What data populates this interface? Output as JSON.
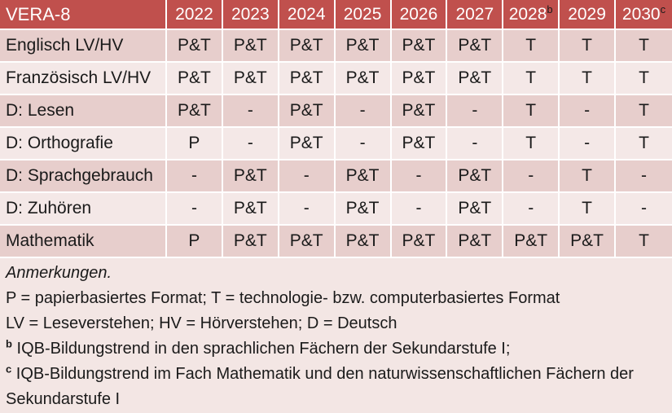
{
  "table": {
    "title": "VERA-8",
    "columns": [
      {
        "label": "2022"
      },
      {
        "label": "2023"
      },
      {
        "label": "2024"
      },
      {
        "label": "2025"
      },
      {
        "label": "2026"
      },
      {
        "label": "2027"
      },
      {
        "label": "2028",
        "sup": "b"
      },
      {
        "label": "2029"
      },
      {
        "label": "2030",
        "sup": "c"
      }
    ],
    "red_from_column_index": 6,
    "rows": [
      {
        "label": "Englisch LV/HV",
        "cells": [
          "P&T",
          "P&T",
          "P&T",
          "P&T",
          "P&T",
          "P&T",
          "T",
          "T",
          "T"
        ]
      },
      {
        "label": "Französisch LV/HV",
        "cells": [
          "P&T",
          "P&T",
          "P&T",
          "P&T",
          "P&T",
          "P&T",
          "T",
          "T",
          "T"
        ]
      },
      {
        "label": "D: Lesen",
        "cells": [
          "P&T",
          "-",
          "P&T",
          "-",
          "P&T",
          "-",
          "T",
          "-",
          "T"
        ]
      },
      {
        "label": "D: Orthografie",
        "cells": [
          "P",
          "-",
          "P&T",
          "-",
          "P&T",
          "-",
          "T",
          "-",
          "T"
        ]
      },
      {
        "label": "D: Sprachgebrauch",
        "cells": [
          "-",
          "P&T",
          "-",
          "P&T",
          "-",
          "P&T",
          "-",
          "T",
          "-"
        ]
      },
      {
        "label": "D: Zuhören",
        "cells": [
          "-",
          "P&T",
          "-",
          "P&T",
          "-",
          "P&T",
          "-",
          "T",
          "-"
        ]
      },
      {
        "label": "Mathematik",
        "cells": [
          "P",
          "P&T",
          "P&T",
          "P&T",
          "P&T",
          "P&T",
          "P&T",
          "P&T",
          "T"
        ]
      }
    ]
  },
  "notes": {
    "title": "Anmerkungen.",
    "lines": [
      {
        "sup": "",
        "text": "P = papierbasiertes Format; T = technologie- bzw. computerbasiertes Format"
      },
      {
        "sup": "",
        "text": "LV = Leseverstehen; HV = Hörverstehen; D = Deutsch"
      },
      {
        "sup": "b",
        "text": "IQB-Bildungstrend in den sprachlichen Fächern der Sekundarstufe I;"
      },
      {
        "sup": "c",
        "text": "IQB-Bildungstrend im Fach Mathematik und den naturwissenschaftlichen Fächern der Sekundarstufe I"
      }
    ]
  },
  "colors": {
    "header_bg": "#C0504D",
    "header_text": "#FFFFFF",
    "band_dark": "#E7CECC",
    "band_light": "#F4E8E7",
    "notes_bg": "#F3E6E4",
    "text": "#1A1A1A",
    "tech_red": "#9E3B39",
    "grid": "#FFFFFF"
  }
}
